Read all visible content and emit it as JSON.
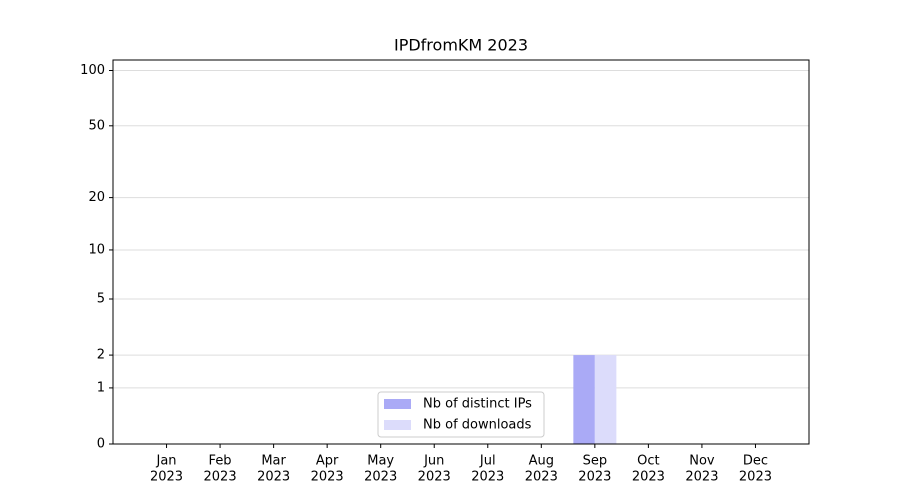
{
  "chart_data": {
    "type": "bar",
    "title": "IPDfromKM 2023",
    "categories": [
      [
        "Jan",
        "2023"
      ],
      [
        "Feb",
        "2023"
      ],
      [
        "Mar",
        "2023"
      ],
      [
        "Apr",
        "2023"
      ],
      [
        "May",
        "2023"
      ],
      [
        "Jun",
        "2023"
      ],
      [
        "Jul",
        "2023"
      ],
      [
        "Aug",
        "2023"
      ],
      [
        "Sep",
        "2023"
      ],
      [
        "Oct",
        "2023"
      ],
      [
        "Nov",
        "2023"
      ],
      [
        "Dec",
        "2023"
      ]
    ],
    "series": [
      {
        "name": "Nb of distinct IPs",
        "color": "#aaaaf6",
        "values": [
          0,
          0,
          0,
          0,
          0,
          0,
          0,
          0,
          2,
          0,
          0,
          0
        ]
      },
      {
        "name": "Nb of downloads",
        "color": "#dcdcfb",
        "values": [
          0,
          0,
          0,
          0,
          0,
          0,
          0,
          0,
          2,
          0,
          0,
          0
        ]
      }
    ],
    "yscale": "log1p",
    "ylim": [
      0,
      114
    ],
    "yticks": [
      0,
      1,
      2,
      5,
      10,
      20,
      50,
      100
    ],
    "grid": true,
    "legend": "lower center"
  }
}
